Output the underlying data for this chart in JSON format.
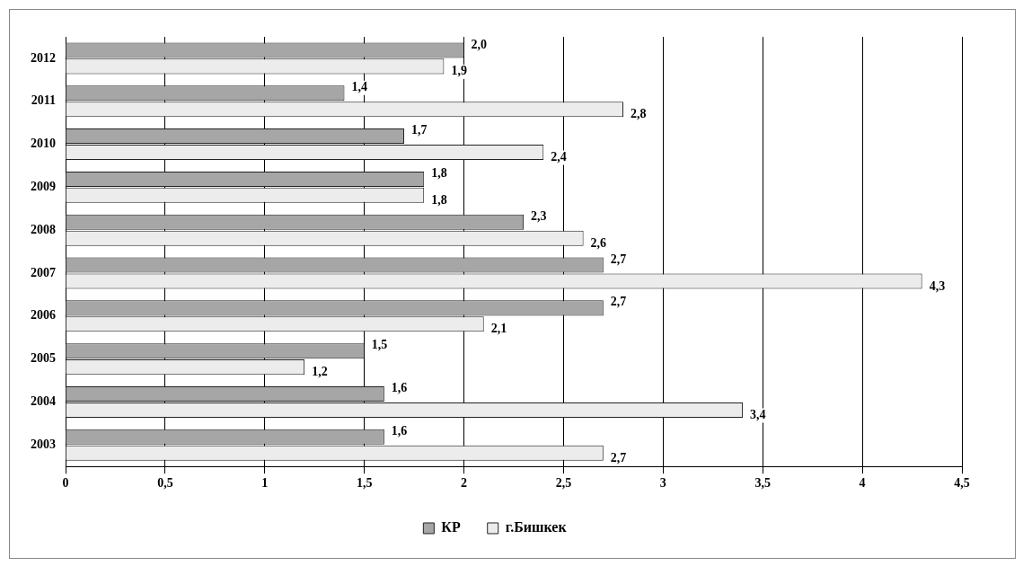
{
  "chart_data": {
    "type": "bar",
    "orientation": "horizontal",
    "categories": [
      "2012",
      "2011",
      "2010",
      "2009",
      "2008",
      "2007",
      "2006",
      "2005",
      "2004",
      "2003"
    ],
    "series": [
      {
        "name": "КР",
        "color": "#a6a6a6",
        "values": [
          2.0,
          1.4,
          1.7,
          1.8,
          2.3,
          2.7,
          2.7,
          1.5,
          1.6,
          1.6
        ],
        "value_labels": [
          "2,0",
          "1,4",
          "1,7",
          "1,8",
          "2,3",
          "2,7",
          "2,7",
          "1,5",
          "1,6",
          "1,6"
        ]
      },
      {
        "name": "г.Бишкек",
        "color": "#ececec",
        "values": [
          1.9,
          2.8,
          2.4,
          1.8,
          2.6,
          4.3,
          2.1,
          1.2,
          3.4,
          2.7
        ],
        "value_labels": [
          "1,9",
          "2,8",
          "2,4",
          "1,8",
          "2,6",
          "4,3",
          "2,1",
          "1,2",
          "3,4",
          "2,7"
        ]
      }
    ],
    "xlim": [
      0,
      4.5
    ],
    "xticks": [
      0,
      {
        "value": 0.5,
        "label": "0,5"
      },
      1,
      {
        "value": 1.5,
        "label": "1,5"
      },
      2,
      {
        "value": 2.5,
        "label": "2,5"
      },
      3,
      {
        "value": 3.5,
        "label": "3,5"
      },
      4,
      {
        "value": 4.5,
        "label": "4,5"
      }
    ],
    "grid": "x",
    "legend": "bottom"
  }
}
